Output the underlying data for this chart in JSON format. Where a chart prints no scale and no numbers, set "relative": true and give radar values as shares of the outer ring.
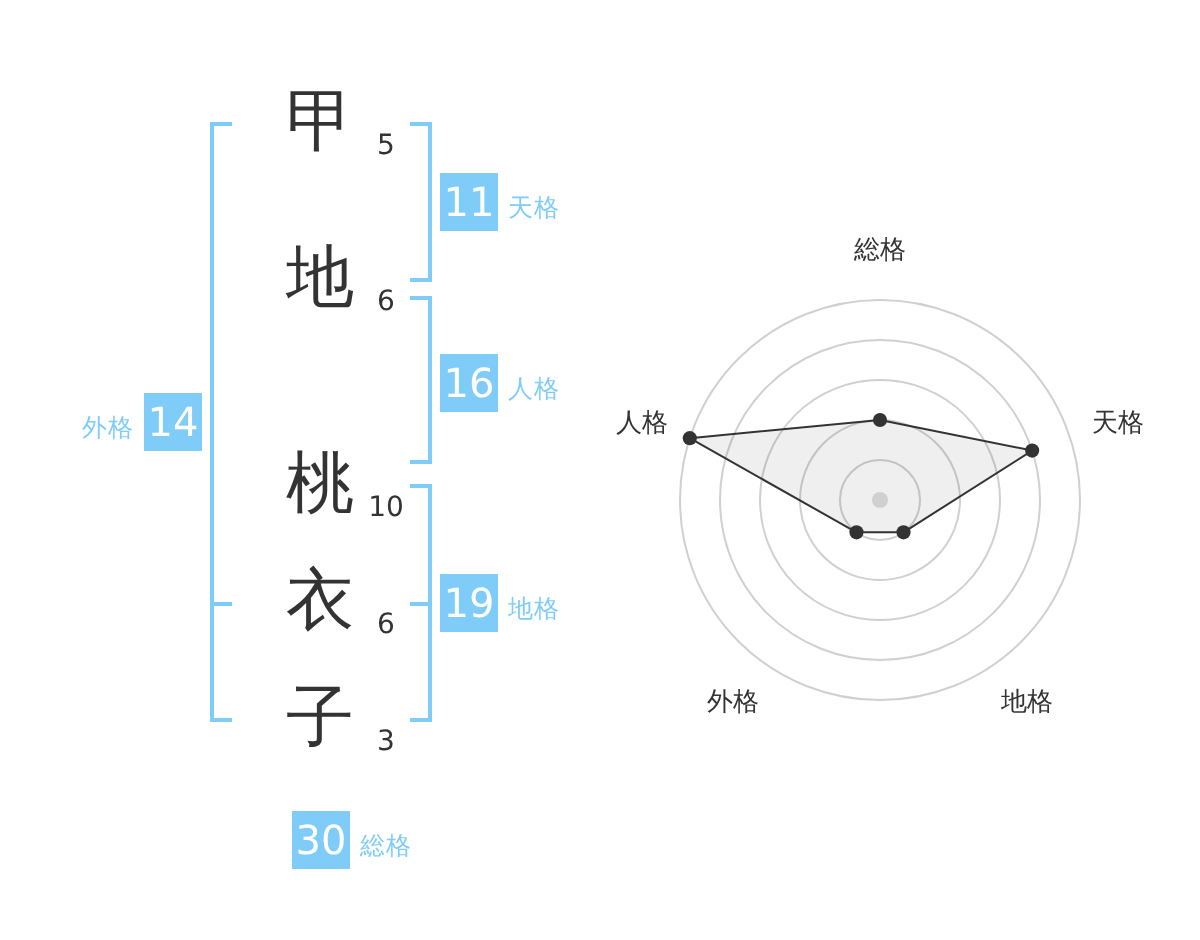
{
  "chart_data": [
    {
      "type": "other",
      "categories": [
        "甲",
        "地",
        "桃",
        "衣",
        "子"
      ],
      "values": [
        5,
        6,
        10,
        6,
        3
      ],
      "data_labels": true
    },
    {
      "type": "other",
      "categories": [
        "天格",
        "人格",
        "地格",
        "外格",
        "総格"
      ],
      "values": [
        11,
        16,
        19,
        14,
        30
      ],
      "data_labels": true,
      "color": "#80ccf8"
    },
    {
      "type": "radar",
      "categories": [
        "総格",
        "天格",
        "地格",
        "外格",
        "人格"
      ],
      "relative": true,
      "grid": true,
      "marker": "circle",
      "series": [
        {
          "color": "#333333",
          "values": [
            0.4,
            0.8,
            0.2,
            0.2,
            1
          ]
        }
      ]
    }
  ]
}
